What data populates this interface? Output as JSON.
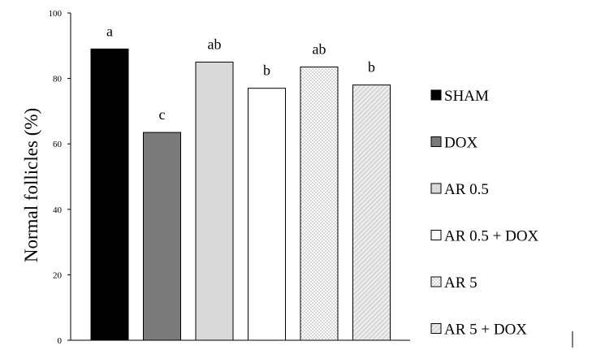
{
  "chart_data": {
    "type": "bar",
    "title": "",
    "xlabel": "",
    "ylabel": "Normal follicles (%)",
    "ylim": [
      0,
      100
    ],
    "yticks": [
      0,
      20,
      40,
      60,
      80,
      100
    ],
    "grid": false,
    "legend_position": "right",
    "categories": [
      "SHAM",
      "DOX",
      "AR 0.5",
      "AR 0.5 + DOX",
      "AR 5",
      "AR 5 + DOX"
    ],
    "values": [
      89,
      63.5,
      85,
      77,
      83.5,
      78
    ],
    "data_labels": [
      "a",
      "c",
      "ab",
      "b",
      "ab",
      "b"
    ],
    "fills": [
      {
        "color": "#000000",
        "pattern": "solid"
      },
      {
        "color": "#7a7a7a",
        "pattern": "solid"
      },
      {
        "color": "#d9d9d9",
        "pattern": "solid"
      },
      {
        "color": "#ffffff",
        "pattern": "solid"
      },
      {
        "color": "#ffffff",
        "pattern": "dots"
      },
      {
        "color": "#e6e6e6",
        "pattern": "diagonal"
      }
    ]
  }
}
